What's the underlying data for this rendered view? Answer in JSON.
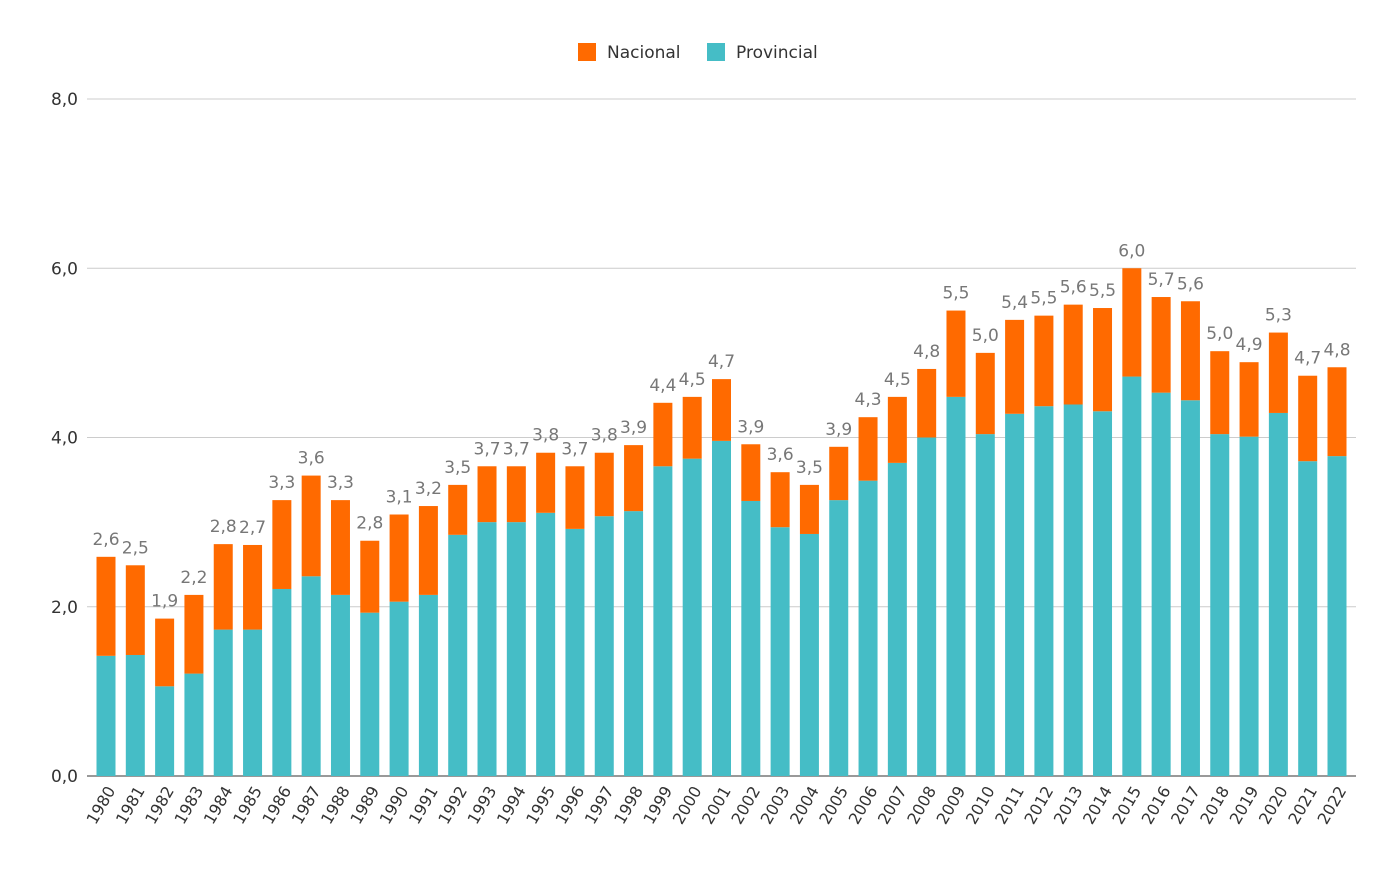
{
  "chart_data": {
    "type": "bar",
    "stacked": true,
    "title": "",
    "xlabel": "",
    "ylabel": "",
    "ylim": [
      0,
      8
    ],
    "yticks": [
      "0,0",
      "2,0",
      "4,0",
      "6,0",
      "8,0"
    ],
    "ytick_values": [
      0,
      2,
      4,
      6,
      8
    ],
    "grid": true,
    "legend_position": "top",
    "categories": [
      "1980",
      "1981",
      "1982",
      "1983",
      "1984",
      "1985",
      "1986",
      "1987",
      "1988",
      "1989",
      "1990",
      "1991",
      "1992",
      "1993",
      "1994",
      "1995",
      "1996",
      "1997",
      "1998",
      "1999",
      "2000",
      "2001",
      "2002",
      "2003",
      "2004",
      "2005",
      "2006",
      "2007",
      "2008",
      "2009",
      "2010",
      "2011",
      "2012",
      "2013",
      "2014",
      "2015",
      "2016",
      "2017",
      "2018",
      "2019",
      "2020",
      "2021",
      "2022"
    ],
    "series": [
      {
        "name": "Provincial",
        "color": "#45BDC6",
        "values": [
          1.42,
          1.43,
          1.06,
          1.21,
          1.73,
          1.73,
          2.21,
          2.36,
          2.14,
          1.93,
          2.06,
          2.14,
          2.85,
          3.0,
          3.0,
          3.11,
          2.92,
          3.07,
          3.13,
          3.66,
          3.75,
          3.96,
          3.25,
          2.94,
          2.86,
          3.26,
          3.49,
          3.7,
          4.0,
          4.48,
          4.04,
          4.28,
          4.37,
          4.39,
          4.31,
          4.72,
          4.53,
          4.44,
          4.04,
          4.01,
          4.29,
          3.72,
          3.78
        ]
      },
      {
        "name": "Nacional",
        "color": "#FF6A00",
        "values": [
          1.17,
          1.06,
          0.8,
          0.93,
          1.01,
          1.0,
          1.05,
          1.19,
          1.12,
          0.85,
          1.03,
          1.05,
          0.59,
          0.66,
          0.66,
          0.71,
          0.74,
          0.75,
          0.78,
          0.75,
          0.73,
          0.73,
          0.67,
          0.65,
          0.58,
          0.63,
          0.75,
          0.78,
          0.81,
          1.02,
          0.96,
          1.11,
          1.07,
          1.18,
          1.22,
          1.28,
          1.13,
          1.17,
          0.98,
          0.88,
          0.95,
          1.01,
          1.05
        ]
      }
    ],
    "legend": [
      "Nacional",
      "Provincial"
    ],
    "total_labels": [
      "2,6",
      "2,5",
      "1,9",
      "2,2",
      "2,8",
      "2,7",
      "3,3",
      "3,6",
      "3,3",
      "2,8",
      "3,1",
      "3,2",
      "3,5",
      "3,7",
      "3,7",
      "3,8",
      "3,7",
      "3,8",
      "3,9",
      "4,4",
      "4,5",
      "4,7",
      "3,9",
      "3,6",
      "3,5",
      "3,9",
      "4,3",
      "4,5",
      "4,8",
      "5,5",
      "5,0",
      "5,4",
      "5,5",
      "5,6",
      "5,5",
      "6,0",
      "5,7",
      "5,6",
      "5,0",
      "4,9",
      "5,3",
      "4,7",
      "4,8"
    ]
  }
}
